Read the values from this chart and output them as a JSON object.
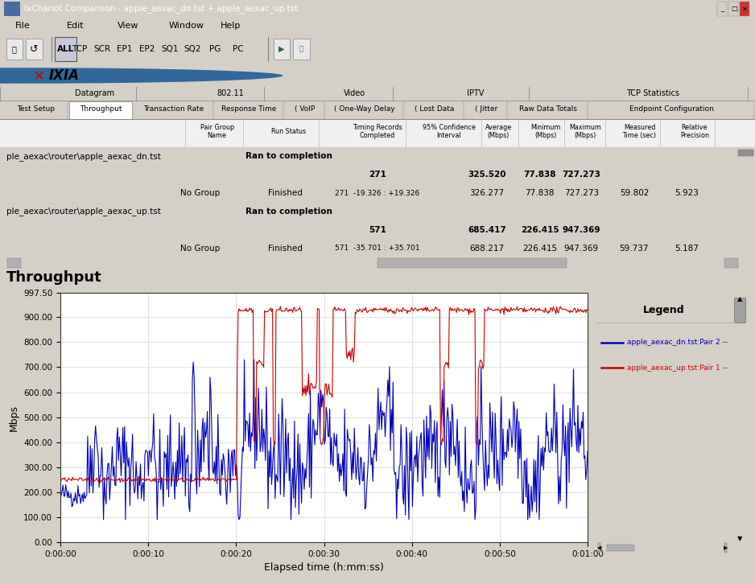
{
  "title": "IxChariot Comparison - apple_aexac_dn.tst + apple_aexac_up.tst",
  "window_bg": "#d4d0c8",
  "titlebar_bg": "#0a246a",
  "content_bg": "#ffffff",
  "chart_bg": "#ffffff",
  "chart_title": "Throughput",
  "xlabel": "Elapsed time (h:mm:ss)",
  "ylabel": "Mbps",
  "ylim": [
    0,
    997.5
  ],
  "yticks": [
    0.0,
    100.0,
    200.0,
    300.0,
    400.0,
    500.0,
    600.0,
    700.0,
    800.0,
    900.0,
    997.5
  ],
  "xticks_labels": [
    "0:00:00",
    "0:00:10",
    "0:00:20",
    "0:00:30",
    "0:00:40",
    "0:00:50",
    "0:01:00"
  ],
  "xticks_pos": [
    0,
    10,
    20,
    30,
    40,
    50,
    60
  ],
  "xlim": [
    0,
    60
  ],
  "legend_title": "Legend",
  "legend_entries": [
    {
      "label": "apple_aexac_dn.tst:Pair 2 --",
      "color": "#0000bb"
    },
    {
      "label": "apple_aexac_up.tst:Pair 1 --",
      "color": "#cc0000"
    }
  ],
  "blue_color": "#0000bb",
  "red_color": "#cc0000",
  "grid_color": "#cccccc"
}
